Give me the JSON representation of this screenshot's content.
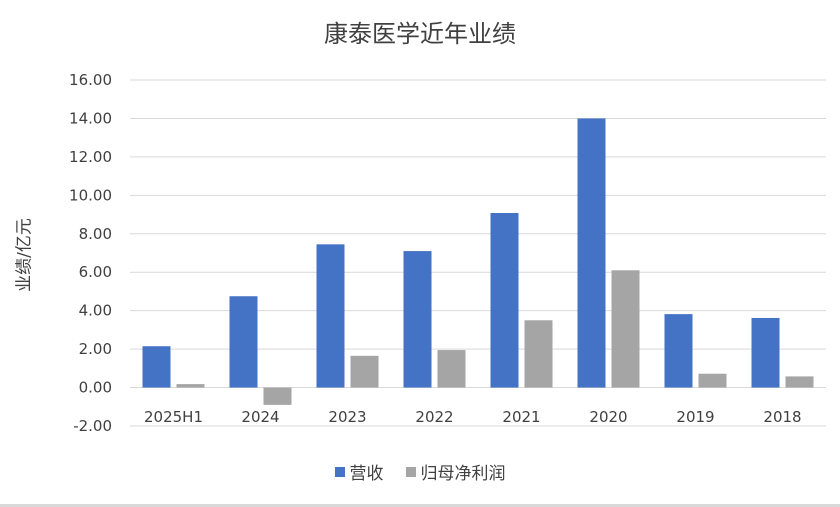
{
  "chart_data": {
    "type": "bar",
    "title": "康泰医学近年业绩",
    "ylabel": "业绩/亿元",
    "xlabel": "",
    "ylim": [
      -2,
      16
    ],
    "yticks": [
      "16.00",
      "14.00",
      "12.00",
      "10.00",
      "8.00",
      "6.00",
      "4.00",
      "2.00",
      "0.00",
      "-2.00"
    ],
    "categories": [
      "2025H1",
      "2024",
      "2023",
      "2022",
      "2021",
      "2020",
      "2019",
      "2018"
    ],
    "series": [
      {
        "name": "营收",
        "color": "#4472c4",
        "values": [
          2.15,
          4.75,
          7.45,
          7.1,
          9.08,
          14.0,
          3.82,
          3.62
        ]
      },
      {
        "name": "归母净利润",
        "color": "#a5a5a5",
        "values": [
          0.18,
          -0.9,
          1.65,
          1.95,
          3.5,
          6.1,
          0.72,
          0.58
        ]
      }
    ],
    "grid": true,
    "legend_position": "bottom"
  }
}
